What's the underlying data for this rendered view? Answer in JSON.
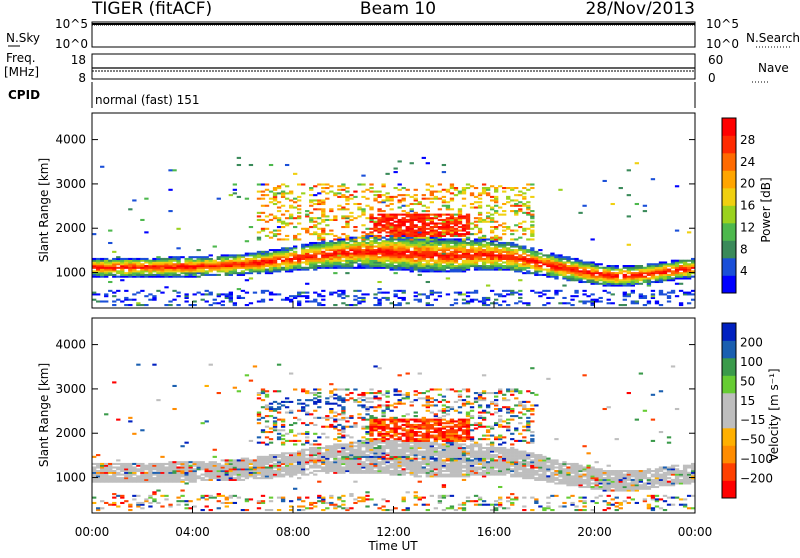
{
  "header": {
    "radar": "TIGER (fitACF)",
    "beam": "Beam 10",
    "date": "28/Nov/2013"
  },
  "aux_panels": {
    "nsky": {
      "label": "N.Sky",
      "ticks": [
        "10^5",
        "10^0"
      ]
    },
    "nsearch": {
      "label": "N.Search",
      "ticks": [
        "10^5",
        "10^0"
      ]
    },
    "freq": {
      "label_line1": "Freq.",
      "label_line2": "[MHz]",
      "ticks": [
        "18",
        "8"
      ]
    },
    "nave": {
      "label": "Nave",
      "ticks": [
        "60",
        "0"
      ]
    },
    "cpid": {
      "label": "CPID",
      "value": "normal (fast) 151"
    }
  },
  "chart_data": [
    {
      "type": "heatmap",
      "panel": "power",
      "ylabel": "Slant Range [km]",
      "xlabel": "Time UT",
      "x_ticks": [
        "00:00",
        "04:00",
        "08:00",
        "12:00",
        "16:00",
        "20:00",
        "00:00"
      ],
      "y_ticks": [
        1000,
        2000,
        3000,
        4000
      ],
      "ylim": [
        200,
        4600
      ],
      "colorbar": {
        "label": "Power [dB]",
        "ticks": [
          "28",
          "24",
          "20",
          "16",
          "12",
          "8",
          "4"
        ],
        "range": [
          0,
          30
        ]
      },
      "palette": [
        "#0000ff",
        "#1a4fd8",
        "#3a8a5a",
        "#4db84d",
        "#9ad21e",
        "#f0d010",
        "#ffa500",
        "#ff6a00",
        "#ff2a00",
        "#ff0000"
      ]
    },
    {
      "type": "heatmap",
      "panel": "velocity",
      "ylabel": "Slant Range [km]",
      "xlabel": "Time UT",
      "x_ticks": [
        "00:00",
        "04:00",
        "08:00",
        "12:00",
        "16:00",
        "20:00",
        "00:00"
      ],
      "y_ticks": [
        1000,
        2000,
        3000,
        4000
      ],
      "ylim": [
        200,
        4600
      ],
      "colorbar": {
        "label": "Velocity [m s⁻¹]",
        "ticks": [
          "200",
          "100",
          "50",
          "15",
          "−15",
          "−50",
          "−100",
          "−200"
        ],
        "range": [
          -250,
          250
        ]
      },
      "palette": [
        "#ff0000",
        "#ff4000",
        "#ff8c00",
        "#ffb000",
        "#bebebe",
        "#bebebe",
        "#66cc33",
        "#3a9a4a",
        "#1a5fb0",
        "#0020c0"
      ]
    }
  ]
}
